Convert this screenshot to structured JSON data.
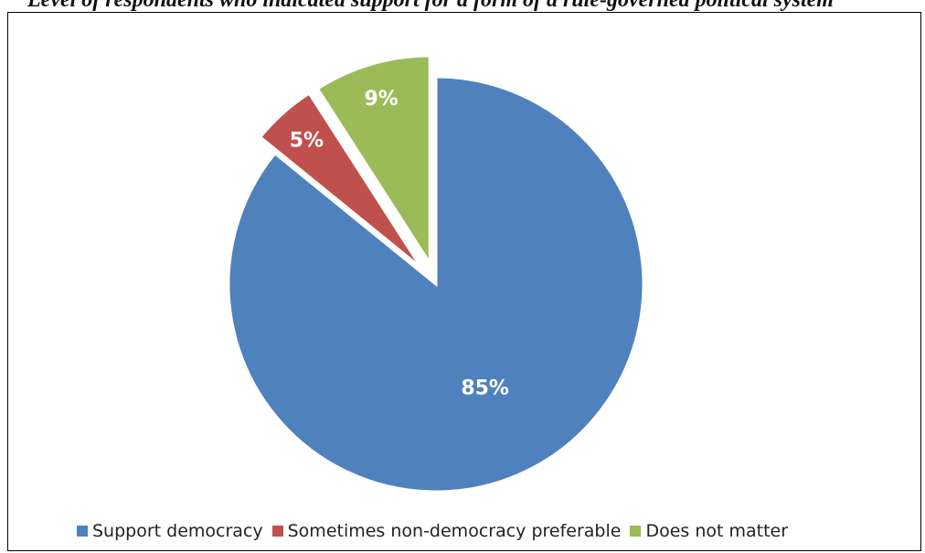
{
  "caption": "Level of respondents who indicated support for a form of a rule-governed political system",
  "chart_data": {
    "type": "pie",
    "title": "",
    "slices": [
      {
        "name": "Support democracy",
        "value": 85,
        "label": "85%",
        "color": "#4F81BD"
      },
      {
        "name": "Sometimes non-democracy preferable",
        "value": 5,
        "label": "5%",
        "color": "#C0504D"
      },
      {
        "name": "Does not matter",
        "value": 9,
        "label": "9%",
        "color": "#9BBB59"
      }
    ],
    "exploded": [
      "Sometimes non-democracy preferable",
      "Does not matter"
    ],
    "label_color": "#ffffff",
    "legend_position": "bottom"
  }
}
